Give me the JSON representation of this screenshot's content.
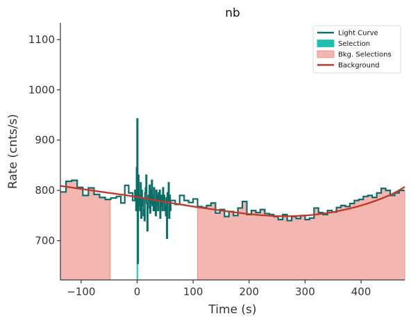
{
  "chart_data": {
    "type": "line",
    "title": "nb",
    "xlabel": "Time (s)",
    "ylabel": "Rate (cnts/s)",
    "xlim": [
      -137,
      478
    ],
    "ylim": [
      622,
      1133
    ],
    "xticks": [
      -100,
      0,
      100,
      200,
      300,
      400
    ],
    "xtick_labels": [
      "−100",
      "0",
      "100",
      "200",
      "300",
      "400"
    ],
    "yticks": [
      700,
      800,
      900,
      1000,
      1100
    ],
    "ytick_labels": [
      "700",
      "800",
      "900",
      "1000",
      "1100"
    ],
    "grid": false,
    "legend_position": "top-right",
    "legend": [
      {
        "label": "Light Curve",
        "kind": "line",
        "color": "#0b6e66"
      },
      {
        "label": "Selection",
        "kind": "patch",
        "color": "#1fbfb0"
      },
      {
        "label": "Bkg. Selections",
        "kind": "patch",
        "color": "#f4b6b0"
      },
      {
        "label": "Background",
        "kind": "line",
        "color": "#c0392b"
      }
    ],
    "colors": {
      "light_curve": "#0b6e66",
      "selection": "#1fbfb0",
      "bkg_fill": "#f4b6b0",
      "bkg_edge": "#e98b84",
      "background": "#c0392b"
    },
    "bkg_selections": [
      [
        -137,
        -48
      ],
      [
        108,
        478
      ]
    ],
    "source_selection": [
      -1,
      2
    ],
    "light_curve": {
      "edges": [
        -137,
        -127,
        -117,
        -107,
        -97,
        -87,
        -77,
        -67,
        -57,
        -47,
        -37,
        -29,
        -22,
        -15,
        -8,
        -4,
        -2,
        -1,
        0,
        1,
        2,
        3,
        4,
        5,
        6,
        7,
        8,
        9,
        10,
        11,
        12,
        13,
        14,
        15,
        16,
        17,
        18,
        19,
        20,
        21,
        22,
        23,
        24,
        25,
        26,
        27,
        28,
        29,
        30,
        31,
        32,
        33,
        34,
        35,
        36,
        37,
        38,
        39,
        40,
        41,
        42,
        43,
        44,
        45,
        46,
        47,
        48,
        49,
        50,
        51,
        52,
        53,
        54,
        55,
        56,
        57,
        58,
        59,
        60,
        68,
        76,
        84,
        92,
        100,
        108,
        116,
        124,
        132,
        140,
        148,
        156,
        164,
        172,
        180,
        188,
        196,
        204,
        212,
        220,
        228,
        236,
        244,
        252,
        260,
        268,
        276,
        284,
        292,
        300,
        308,
        316,
        324,
        332,
        340,
        348,
        356,
        364,
        372,
        380,
        388,
        396,
        404,
        412,
        420,
        428,
        436,
        444,
        452,
        460,
        468,
        478
      ],
      "rates": [
        797,
        818,
        820,
        806,
        790,
        805,
        792,
        786,
        782,
        785,
        788,
        775,
        810,
        795,
        780,
        800,
        760,
        845,
        942,
        655,
        830,
        770,
        790,
        760,
        815,
        745,
        800,
        770,
        785,
        750,
        760,
        740,
        795,
        805,
        830,
        775,
        720,
        765,
        790,
        780,
        810,
        755,
        800,
        775,
        820,
        770,
        790,
        760,
        805,
        760,
        780,
        750,
        800,
        770,
        790,
        760,
        795,
        780,
        800,
        745,
        770,
        790,
        780,
        760,
        805,
        775,
        790,
        760,
        770,
        750,
        785,
        705,
        795,
        780,
        815,
        745,
        790,
        760,
        780,
        772,
        790,
        780,
        776,
        783,
        768,
        766,
        770,
        775,
        755,
        762,
        748,
        758,
        750,
        765,
        778,
        752,
        760,
        756,
        762,
        754,
        752,
        748,
        742,
        752,
        740,
        748,
        744,
        750,
        742,
        745,
        765,
        756,
        752,
        760,
        757,
        766,
        770,
        768,
        774,
        780,
        782,
        788,
        790,
        786,
        795,
        804,
        800,
        790,
        795,
        800
      ],
      "selection_spike": {
        "x": [
          -1,
          2
        ],
        "y_top": 942
      }
    },
    "background_curve": {
      "x": [
        -137,
        -100,
        -50,
        0,
        50,
        100,
        150,
        200,
        250,
        300,
        350,
        400,
        450,
        478
      ],
      "y": [
        809,
        803,
        795,
        787,
        777,
        768,
        760,
        753,
        749,
        750,
        757,
        770,
        790,
        807
      ]
    }
  }
}
